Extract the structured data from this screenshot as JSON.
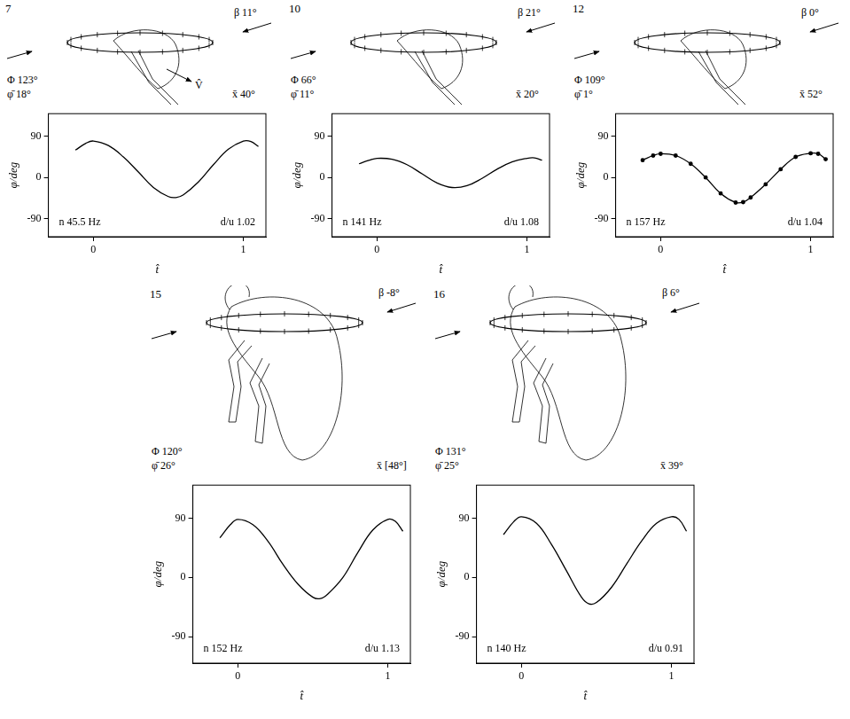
{
  "chart_data": [
    {
      "type": "line",
      "title": "7",
      "x_label": "t̂",
      "y_label": "φ/deg",
      "annotations": [
        "Φ 123°",
        "φ̄ 18°",
        "β 11°",
        "x̄ 40°",
        "n 45.5 Hz",
        "d/u 1.02",
        "V̂"
      ],
      "x": [
        -0.12,
        -0.05,
        0,
        0.1,
        0.2,
        0.3,
        0.4,
        0.5,
        0.55,
        0.6,
        0.7,
        0.8,
        0.9,
        1.0,
        1.05,
        1.1
      ],
      "values": [
        60,
        75,
        80,
        70,
        45,
        12,
        -22,
        -42,
        -44,
        -38,
        -10,
        28,
        62,
        80,
        79,
        68
      ],
      "color": "#000000",
      "marker": "none",
      "line_style": "solid",
      "xlim": [
        -0.3,
        1.15
      ],
      "ylim": [
        -130,
        140
      ],
      "xticks": [
        0,
        1
      ],
      "yticks": [
        -90,
        0,
        90
      ],
      "grid": false
    },
    {
      "type": "line",
      "title": "10",
      "x_label": "t̂",
      "y_label": "φ/deg",
      "annotations": [
        "Φ 66°",
        "φ̄ 11°",
        "β 21°",
        "x̄ 20°",
        "n 141 Hz",
        "d/u 1.08"
      ],
      "x": [
        -0.12,
        -0.05,
        0,
        0.1,
        0.2,
        0.3,
        0.4,
        0.5,
        0.6,
        0.7,
        0.8,
        0.9,
        1.0,
        1.05,
        1.1
      ],
      "values": [
        30,
        38,
        42,
        40,
        28,
        8,
        -12,
        -22,
        -18,
        -2,
        18,
        34,
        42,
        43,
        38
      ],
      "color": "#000000",
      "marker": "none",
      "line_style": "solid",
      "xlim": [
        -0.3,
        1.15
      ],
      "ylim": [
        -130,
        140
      ],
      "xticks": [
        0,
        1
      ],
      "yticks": [
        -90,
        0,
        90
      ],
      "grid": false
    },
    {
      "type": "line",
      "title": "12",
      "x_label": "t̂",
      "y_label": "φ/deg",
      "annotations": [
        "Φ 109°",
        "φ̄ 1°",
        "β 0°",
        "x̄ 52°",
        "n 157 Hz",
        "d/u 1.04"
      ],
      "x": [
        -0.12,
        -0.05,
        0,
        0.1,
        0.2,
        0.3,
        0.4,
        0.5,
        0.55,
        0.6,
        0.7,
        0.8,
        0.9,
        1.0,
        1.05,
        1.1
      ],
      "values": [
        38,
        48,
        52,
        48,
        30,
        0,
        -35,
        -55,
        -54,
        -44,
        -15,
        18,
        45,
        53,
        52,
        40
      ],
      "color": "#000000",
      "marker": "circle",
      "line_style": "solid",
      "xlim": [
        -0.3,
        1.15
      ],
      "ylim": [
        -130,
        140
      ],
      "xticks": [
        0,
        1
      ],
      "yticks": [
        -90,
        0,
        90
      ],
      "grid": false
    },
    {
      "type": "line",
      "title": "15",
      "x_label": "t̂",
      "y_label": "φ/deg",
      "annotations": [
        "Φ 120°",
        "φ̄ 26°",
        "β -8°",
        "x̄ [48°]",
        "n 152 Hz",
        "d/u 1.13"
      ],
      "x": [
        -0.12,
        -0.05,
        0,
        0.1,
        0.2,
        0.3,
        0.4,
        0.5,
        0.55,
        0.6,
        0.7,
        0.8,
        0.9,
        1.0,
        1.05,
        1.1
      ],
      "values": [
        60,
        80,
        88,
        80,
        55,
        20,
        -10,
        -30,
        -32,
        -25,
        0,
        38,
        72,
        88,
        85,
        70
      ],
      "color": "#000000",
      "marker": "none",
      "line_style": "solid",
      "xlim": [
        -0.3,
        1.15
      ],
      "ylim": [
        -130,
        140
      ],
      "xticks": [
        0,
        1
      ],
      "yticks": [
        -90,
        0,
        90
      ],
      "grid": false
    },
    {
      "type": "line",
      "title": "16",
      "x_label": "t̂",
      "y_label": "φ/deg",
      "annotations": [
        "Φ 131°",
        "φ̄ 25°",
        "β 6°",
        "x̄ 39°",
        "n 140 Hz",
        "d/u 0.91"
      ],
      "x": [
        -0.12,
        -0.05,
        0,
        0.1,
        0.2,
        0.3,
        0.4,
        0.45,
        0.5,
        0.6,
        0.7,
        0.8,
        0.9,
        1.0,
        1.05,
        1.1
      ],
      "values": [
        65,
        85,
        92,
        82,
        50,
        10,
        -30,
        -40,
        -38,
        -15,
        20,
        55,
        82,
        92,
        88,
        70
      ],
      "color": "#000000",
      "marker": "none",
      "line_style": "solid",
      "xlim": [
        -0.3,
        1.15
      ],
      "ylim": [
        -130,
        140
      ],
      "xticks": [
        0,
        1
      ],
      "yticks": [
        -90,
        0,
        90
      ],
      "grid": false
    }
  ]
}
